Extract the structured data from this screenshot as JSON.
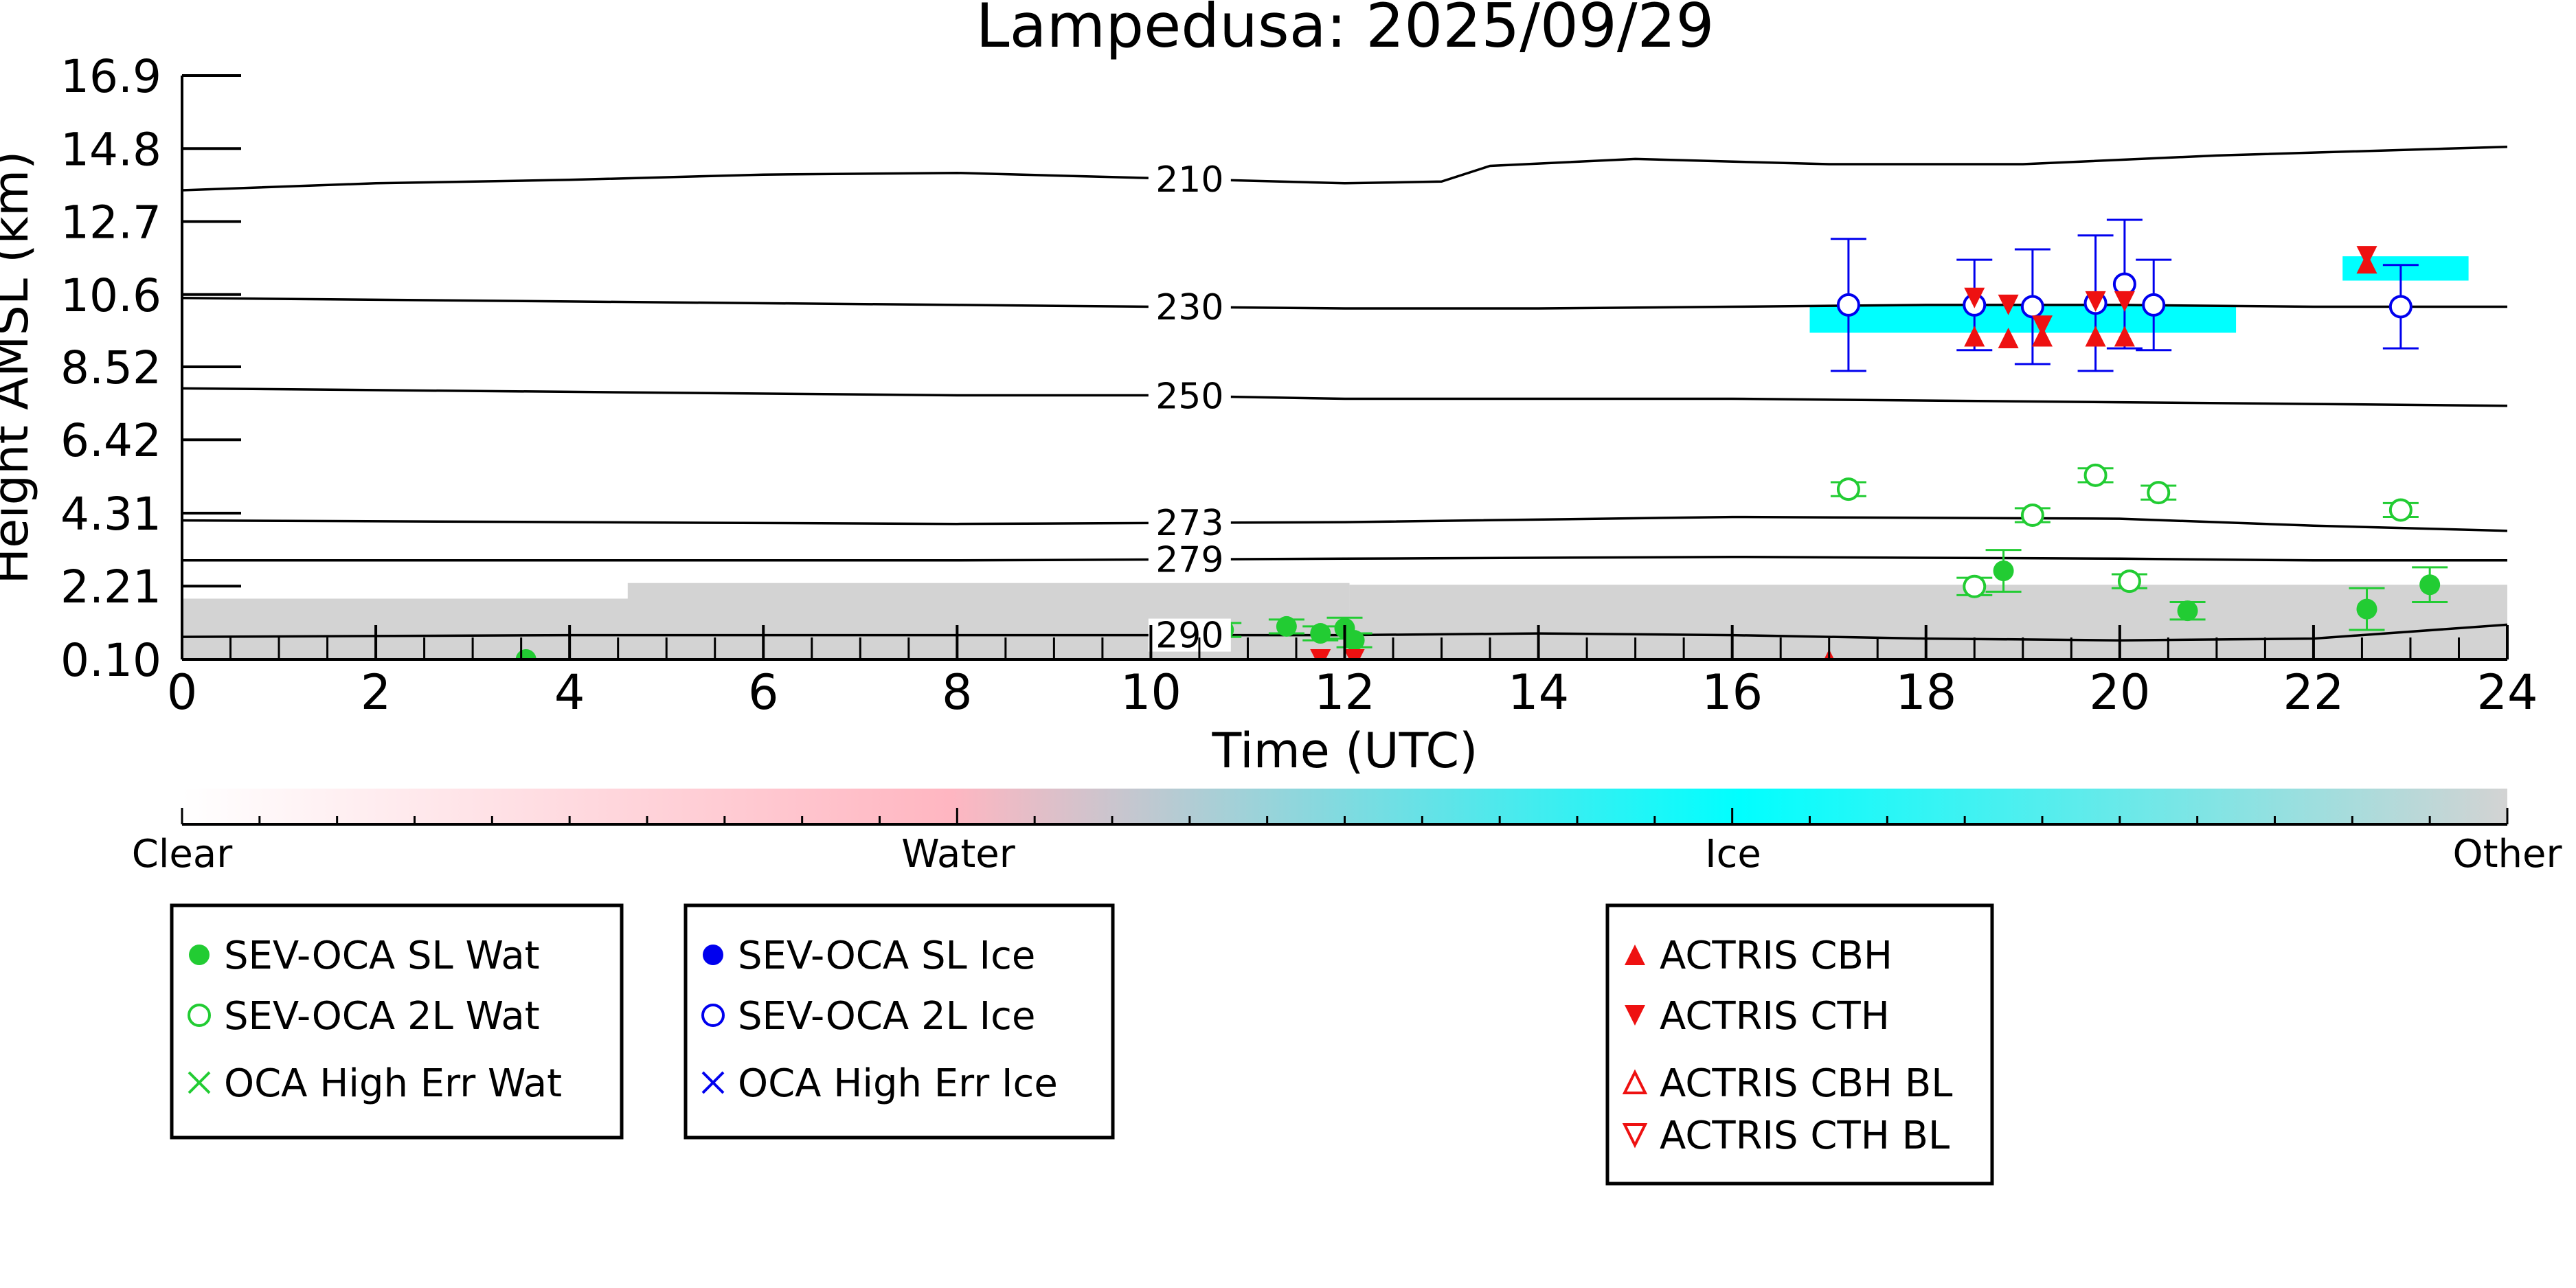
{
  "chart_data": {
    "type": "scatter",
    "title": "Lampedusa: 2025/09/29",
    "xlabel": "Time (UTC)",
    "ylabel": "Height AMSL (km)",
    "xlim": [
      0,
      24
    ],
    "ylim": [
      0.1,
      16.9
    ],
    "x_ticks": [
      0,
      2,
      4,
      6,
      8,
      10,
      12,
      14,
      16,
      18,
      20,
      22,
      24
    ],
    "y_ticks": [
      "0.10",
      "2.21",
      "4.31",
      "6.42",
      "8.52",
      "10.6",
      "12.7",
      "14.8",
      "16.9"
    ],
    "grid": false,
    "colorbar": {
      "labels": [
        "Clear",
        "Water",
        "Ice",
        "Other"
      ],
      "colors": [
        "#ffffff",
        "#ffb6c1",
        "#00ffff",
        "#d3d3d3"
      ]
    },
    "isotherms": [
      {
        "label": "210",
        "points": [
          [
            0,
            13.6
          ],
          [
            2,
            13.8
          ],
          [
            4,
            13.9
          ],
          [
            6,
            14.05
          ],
          [
            8,
            14.1
          ],
          [
            10,
            13.95
          ],
          [
            12,
            13.8
          ],
          [
            13,
            13.85
          ],
          [
            13.5,
            14.3
          ],
          [
            15,
            14.5
          ],
          [
            17,
            14.35
          ],
          [
            19,
            14.35
          ],
          [
            21,
            14.6
          ],
          [
            24,
            14.85
          ]
        ]
      },
      {
        "label": "230",
        "points": [
          [
            0,
            10.5
          ],
          [
            4,
            10.4
          ],
          [
            8,
            10.3
          ],
          [
            10,
            10.25
          ],
          [
            12,
            10.2
          ],
          [
            14,
            10.2
          ],
          [
            16,
            10.25
          ],
          [
            18,
            10.3
          ],
          [
            20,
            10.3
          ],
          [
            22,
            10.25
          ],
          [
            24,
            10.25
          ]
        ]
      },
      {
        "label": "250",
        "points": [
          [
            0,
            7.9
          ],
          [
            4,
            7.8
          ],
          [
            8,
            7.7
          ],
          [
            10,
            7.7
          ],
          [
            12,
            7.6
          ],
          [
            16,
            7.6
          ],
          [
            20,
            7.5
          ],
          [
            22,
            7.45
          ],
          [
            24,
            7.4
          ]
        ]
      },
      {
        "label": "273",
        "points": [
          [
            0,
            4.1
          ],
          [
            4,
            4.05
          ],
          [
            8,
            4.0
          ],
          [
            12,
            4.05
          ],
          [
            16,
            4.2
          ],
          [
            20,
            4.15
          ],
          [
            22,
            3.95
          ],
          [
            24,
            3.8
          ]
        ]
      },
      {
        "label": "279",
        "points": [
          [
            0,
            2.95
          ],
          [
            4,
            2.95
          ],
          [
            8,
            2.95
          ],
          [
            12,
            3.0
          ],
          [
            16,
            3.05
          ],
          [
            20,
            3.0
          ],
          [
            22,
            2.95
          ],
          [
            24,
            2.95
          ]
        ]
      },
      {
        "label": "290",
        "points": [
          [
            0,
            0.75
          ],
          [
            4,
            0.8
          ],
          [
            8,
            0.8
          ],
          [
            12,
            0.8
          ],
          [
            14,
            0.85
          ],
          [
            16,
            0.8
          ],
          [
            18,
            0.7
          ],
          [
            20,
            0.65
          ],
          [
            22,
            0.7
          ],
          [
            24,
            1.1
          ]
        ]
      }
    ],
    "cloud_mask": [
      {
        "class": "Other",
        "x0": 0,
        "x1": 12.05,
        "y0": 0.1,
        "y1": 1.85
      },
      {
        "class": "Other",
        "x0": 4.6,
        "x1": 12.05,
        "y0": 0.1,
        "y1": 2.3
      },
      {
        "class": "Other",
        "x0": 12.05,
        "x1": 24,
        "y0": 0.1,
        "y1": 2.25
      },
      {
        "class": "Ice",
        "x0": 16.8,
        "x1": 21.2,
        "y0": 9.5,
        "y1": 10.3
      },
      {
        "class": "Ice",
        "x0": 22.3,
        "x1": 23.6,
        "y0": 11.0,
        "y1": 11.7
      }
    ],
    "series": [
      {
        "name": "SEV-OCA SL Wat",
        "marker": "filled-circle",
        "color": "#22cc33",
        "points": [
          [
            3.55,
            0.1,
            0
          ],
          [
            10.75,
            0.95,
            0.2
          ],
          [
            11.4,
            1.05,
            0.2
          ],
          [
            11.75,
            0.85,
            0.2
          ],
          [
            12.0,
            1.0,
            0.3
          ],
          [
            12.1,
            0.65,
            0.2
          ],
          [
            18.8,
            2.65,
            0.6
          ],
          [
            20.7,
            1.5,
            0.25
          ],
          [
            22.55,
            1.55,
            0.6
          ],
          [
            23.2,
            2.25,
            0.5
          ]
        ]
      },
      {
        "name": "SEV-OCA 2L Wat",
        "marker": "open-circle",
        "color": "#22cc33",
        "points": [
          [
            17.2,
            5.0,
            0.2
          ],
          [
            18.5,
            2.2,
            0.25
          ],
          [
            19.1,
            4.25,
            0.2
          ],
          [
            19.75,
            5.4,
            0.2
          ],
          [
            20.1,
            2.35,
            0.2
          ],
          [
            20.4,
            4.9,
            0.2
          ],
          [
            22.9,
            4.4,
            0.2
          ]
        ]
      },
      {
        "name": "OCA High Err Wat",
        "marker": "x",
        "color": "#22cc33",
        "points": []
      },
      {
        "name": "SEV-OCA SL Ice",
        "marker": "filled-circle",
        "color": "#0000ee",
        "points": []
      },
      {
        "name": "SEV-OCA 2L Ice",
        "marker": "open-circle",
        "color": "#0000ee",
        "points": [
          [
            17.2,
            10.3,
            1.9
          ],
          [
            18.5,
            10.3,
            1.3
          ],
          [
            19.1,
            10.25,
            1.65
          ],
          [
            19.75,
            10.35,
            1.95
          ],
          [
            20.05,
            10.9,
            1.85
          ],
          [
            20.35,
            10.3,
            1.3
          ],
          [
            22.9,
            10.25,
            1.2
          ]
        ]
      },
      {
        "name": "OCA High Err Ice",
        "marker": "x",
        "color": "#0000ee",
        "points": []
      },
      {
        "name": "ACTRIS CBH",
        "marker": "triangle-up",
        "color": "#ee1111",
        "points": [
          [
            17.0,
            0.1
          ],
          [
            18.5,
            9.4
          ],
          [
            18.85,
            9.35
          ],
          [
            19.2,
            9.4
          ],
          [
            19.75,
            9.4
          ],
          [
            20.05,
            9.4
          ],
          [
            22.55,
            11.5
          ]
        ]
      },
      {
        "name": "ACTRIS CTH",
        "marker": "triangle-down",
        "color": "#ee1111",
        "points": [
          [
            11.75,
            0.1
          ],
          [
            12.1,
            0.1
          ],
          [
            18.5,
            10.5
          ],
          [
            18.85,
            10.3
          ],
          [
            19.2,
            9.7
          ],
          [
            19.75,
            10.4
          ],
          [
            20.05,
            10.4
          ],
          [
            22.55,
            11.7
          ]
        ]
      },
      {
        "name": "ACTRIS CBH BL",
        "marker": "open-triangle-up",
        "color": "#ee1111",
        "points": []
      },
      {
        "name": "ACTRIS CTH BL",
        "marker": "open-triangle-down",
        "color": "#ee1111",
        "points": []
      }
    ],
    "legend_groups": [
      [
        "SEV-OCA SL Wat",
        "SEV-OCA 2L Wat",
        "OCA High Err Wat"
      ],
      [
        "SEV-OCA SL Ice",
        "SEV-OCA 2L Ice",
        "OCA High Err Ice"
      ],
      [
        "ACTRIS CBH",
        "ACTRIS CTH",
        "ACTRIS CBH BL",
        "ACTRIS CTH BL"
      ]
    ]
  }
}
